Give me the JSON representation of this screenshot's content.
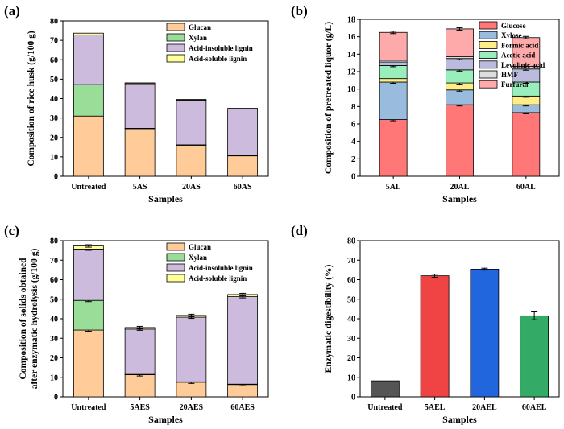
{
  "colors": {
    "glucan": "#FFCC99",
    "xylan": "#99DD99",
    "ais_lignin": "#CCBBDD",
    "as_lignin": "#FFFF99",
    "glucose": "#FF7777",
    "xylose": "#99BBDD",
    "formic": "#FFEE88",
    "acetic": "#99EEBB",
    "levulinic": "#BBBBDD",
    "hmf": "#DDDDDD",
    "furfural": "#FFAAAA",
    "untreated_bar": "#555555",
    "ael5": "#F04444",
    "ael20": "#2266DD",
    "ael60": "#33AA66"
  },
  "chart_data": [
    {
      "panel": "(a)",
      "type": "bar",
      "stacked": true,
      "categories": [
        "Untreated",
        "5AS",
        "20AS",
        "60AS"
      ],
      "xlabel": "Samples",
      "ylabel": "Composition of rice husk (g/100 g)",
      "ylim": [
        0,
        80
      ],
      "yticks": [
        0,
        10,
        20,
        30,
        40,
        50,
        60,
        70,
        80
      ],
      "legend_position": "top-right",
      "series": [
        {
          "name": "Glucan",
          "color_key": "glucan",
          "values": [
            31.0,
            24.5,
            16.0,
            10.5
          ]
        },
        {
          "name": "Xylan",
          "color_key": "xylan",
          "values": [
            16.2,
            0.2,
            0.2,
            0.2
          ]
        },
        {
          "name": "Acid-insoluble lignin",
          "color_key": "ais_lignin",
          "values": [
            25.6,
            23.0,
            23.0,
            24.0
          ]
        },
        {
          "name": "Acid-soluble lignin",
          "color_key": "as_lignin",
          "values": [
            0.9,
            0.4,
            0.4,
            0.3
          ]
        }
      ]
    },
    {
      "panel": "(b)",
      "type": "bar",
      "stacked": true,
      "categories": [
        "5AL",
        "20AL",
        "60AL"
      ],
      "xlabel": "Samples",
      "ylabel": "Composition of pretreated liquor (g/L)",
      "ylim": [
        0,
        18
      ],
      "yticks": [
        0,
        2,
        4,
        6,
        8,
        10,
        12,
        14,
        16,
        18
      ],
      "legend_position": "top-right",
      "series": [
        {
          "name": "Glucose",
          "color_key": "glucose",
          "values": [
            6.5,
            8.2,
            7.3
          ]
        },
        {
          "name": "Xylose",
          "color_key": "xylose",
          "values": [
            4.3,
            1.7,
            0.9
          ]
        },
        {
          "name": "Formic acid",
          "color_key": "formic",
          "values": [
            0.4,
            0.8,
            1.0
          ]
        },
        {
          "name": "Acetic acid",
          "color_key": "acetic",
          "values": [
            1.5,
            1.5,
            1.6
          ]
        },
        {
          "name": "Levulinic acid",
          "color_key": "levulinic",
          "values": [
            0.4,
            1.3,
            1.5
          ]
        },
        {
          "name": "HMF",
          "color_key": "hmf",
          "values": [
            0.2,
            0.2,
            0.3
          ]
        },
        {
          "name": "Furfural",
          "color_key": "furfural",
          "values": [
            3.2,
            3.2,
            3.3
          ]
        }
      ]
    },
    {
      "panel": "(c)",
      "type": "bar",
      "stacked": true,
      "categories": [
        "Untreated",
        "5AES",
        "20AES",
        "60AES"
      ],
      "xlabel": "Samples",
      "ylabel": "Composition of solids obtained after enzymatic hydrolysis (g/100 g)",
      "ylabel_lines": [
        "Composition of solids obtained",
        "after enzymatic hydrolysis (g/100 g)"
      ],
      "ylim": [
        0,
        80
      ],
      "yticks": [
        0,
        10,
        20,
        30,
        40,
        50,
        60,
        70,
        80
      ],
      "legend_position": "top-right",
      "series": [
        {
          "name": "Glucan",
          "color_key": "glucan",
          "values": [
            34.2,
            11.3,
            7.5,
            6.3
          ]
        },
        {
          "name": "Xylan",
          "color_key": "xylan",
          "values": [
            15.2,
            0.2,
            0.2,
            0.2
          ]
        },
        {
          "name": "Acid-insoluble lignin",
          "color_key": "ais_lignin",
          "values": [
            26.3,
            23.2,
            33.1,
            44.8
          ]
        },
        {
          "name": "Acid-soluble lignin",
          "color_key": "as_lignin",
          "values": [
            1.6,
            0.8,
            0.9,
            1.1
          ]
        }
      ]
    },
    {
      "panel": "(d)",
      "type": "bar",
      "stacked": false,
      "categories": [
        "Untreated",
        "5AEL",
        "20AEL",
        "60AEL"
      ],
      "xlabel": "Samples",
      "ylabel": "Enzymatic digestibility (%)",
      "ylim": [
        0,
        80
      ],
      "yticks": [
        0,
        10,
        20,
        30,
        40,
        50,
        60,
        70,
        80
      ],
      "values": [
        8.2,
        62.0,
        65.4,
        41.5
      ],
      "errors": [
        0,
        0.8,
        0.5,
        2.0
      ],
      "color_keys": [
        "untreated_bar",
        "ael5",
        "ael20",
        "ael60"
      ]
    }
  ]
}
